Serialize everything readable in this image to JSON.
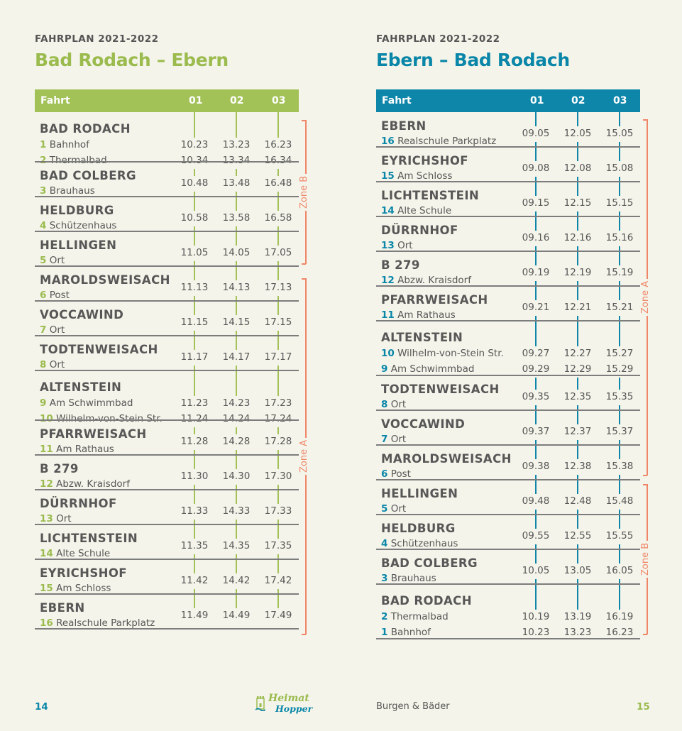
{
  "left": {
    "kicker": "FAHRPLAN 2021-2022",
    "title": "Bad Rodach – Ebern",
    "header": {
      "fahrt": "Fahrt",
      "c1": "01",
      "c2": "02",
      "c3": "03"
    },
    "zones": {
      "b": "Zone B",
      "a": "Zone A"
    },
    "stops": [
      {
        "name": "BAD RODACH",
        "subs": [
          {
            "num": "1",
            "label": "Bahnhof",
            "times": [
              "10.23",
              "13.23",
              "16.23"
            ]
          },
          {
            "num": "2",
            "label": "Thermalbad",
            "times": [
              "10.34",
              "13.34",
              "16.34"
            ]
          }
        ]
      },
      {
        "name": "BAD COLBERG",
        "num": "3",
        "label": "Brauhaus",
        "times": [
          "10.48",
          "13.48",
          "16.48"
        ]
      },
      {
        "name": "HELDBURG",
        "num": "4",
        "label": "Schützenhaus",
        "times": [
          "10.58",
          "13.58",
          "16.58"
        ]
      },
      {
        "name": "HELLINGEN",
        "num": "5",
        "label": "Ort",
        "times": [
          "11.05",
          "14.05",
          "17.05"
        ]
      },
      {
        "name": "MAROLDSWEISACH",
        "num": "6",
        "label": "Post",
        "times": [
          "11.13",
          "14.13",
          "17.13"
        ]
      },
      {
        "name": "VOCCAWIND",
        "num": "7",
        "label": "Ort",
        "times": [
          "11.15",
          "14.15",
          "17.15"
        ]
      },
      {
        "name": "TODTENWEISACH",
        "num": "8",
        "label": "Ort",
        "times": [
          "11.17",
          "14.17",
          "17.17"
        ]
      },
      {
        "name": "ALTENSTEIN",
        "subs": [
          {
            "num": "9",
            "label": "Am Schwimmbad",
            "times": [
              "11.23",
              "14.23",
              "17.23"
            ]
          },
          {
            "num": "10",
            "label": "Wilhelm-von-Stein Str.",
            "times": [
              "11.24",
              "14.24",
              "17.24"
            ]
          }
        ]
      },
      {
        "name": "PFARRWEISACH",
        "num": "11",
        "label": "Am Rathaus",
        "times": [
          "11.28",
          "14.28",
          "17.28"
        ]
      },
      {
        "name": "B 279",
        "num": "12",
        "label": "Abzw. Kraisdorf",
        "times": [
          "11.30",
          "14.30",
          "17.30"
        ]
      },
      {
        "name": "DÜRRNHOF",
        "num": "13",
        "label": "Ort",
        "times": [
          "11.33",
          "14.33",
          "17.33"
        ]
      },
      {
        "name": "LICHTENSTEIN",
        "num": "14",
        "label": "Alte Schule",
        "times": [
          "11.35",
          "14.35",
          "17.35"
        ]
      },
      {
        "name": "EYRICHSHOF",
        "num": "15",
        "label": "Am Schloss",
        "times": [
          "11.42",
          "14.42",
          "17.42"
        ]
      },
      {
        "name": "EBERN",
        "num": "16",
        "label": "Realschule Parkplatz",
        "times": [
          "11.49",
          "14.49",
          "17.49"
        ]
      }
    ]
  },
  "right": {
    "kicker": "FAHRPLAN 2021-2022",
    "title": "Ebern – Bad Rodach",
    "header": {
      "fahrt": "Fahrt",
      "c1": "01",
      "c2": "02",
      "c3": "03"
    },
    "zones": {
      "a": "Zone A",
      "b": "Zone B"
    },
    "stops": [
      {
        "name": "EBERN",
        "num": "16",
        "label": "Realschule Parkplatz",
        "times": [
          "09.05",
          "12.05",
          "15.05"
        ]
      },
      {
        "name": "EYRICHSHOF",
        "num": "15",
        "label": "Am Schloss",
        "times": [
          "09.08",
          "12.08",
          "15.08"
        ]
      },
      {
        "name": "LICHTENSTEIN",
        "num": "14",
        "label": "Alte Schule",
        "times": [
          "09.15",
          "12.15",
          "15.15"
        ]
      },
      {
        "name": "DÜRRNHOF",
        "num": "13",
        "label": "Ort",
        "times": [
          "09.16",
          "12.16",
          "15.16"
        ]
      },
      {
        "name": "B 279",
        "num": "12",
        "label": "Abzw. Kraisdorf",
        "times": [
          "09.19",
          "12.19",
          "15.19"
        ]
      },
      {
        "name": "PFARRWEISACH",
        "num": "11",
        "label": "Am Rathaus",
        "times": [
          "09.21",
          "12.21",
          "15.21"
        ]
      },
      {
        "name": "ALTENSTEIN",
        "subs": [
          {
            "num": "10",
            "label": "Wilhelm-von-Stein Str.",
            "times": [
              "09.27",
              "12.27",
              "15.27"
            ]
          },
          {
            "num": "9",
            "label": "Am Schwimmbad",
            "times": [
              "09.29",
              "12.29",
              "15.29"
            ]
          }
        ]
      },
      {
        "name": "TODTENWEISACH",
        "num": "8",
        "label": "Ort",
        "times": [
          "09.35",
          "12.35",
          "15.35"
        ]
      },
      {
        "name": "VOCCAWIND",
        "num": "7",
        "label": "Ort",
        "times": [
          "09.37",
          "12.37",
          "15.37"
        ]
      },
      {
        "name": "MAROLDSWEISACH",
        "num": "6",
        "label": "Post",
        "times": [
          "09.38",
          "12.38",
          "15.38"
        ]
      },
      {
        "name": "HELLINGEN",
        "num": "5",
        "label": "Ort",
        "times": [
          "09.48",
          "12.48",
          "15.48"
        ]
      },
      {
        "name": "HELDBURG",
        "num": "4",
        "label": "Schützenhaus",
        "times": [
          "09.55",
          "12.55",
          "15.55"
        ]
      },
      {
        "name": "BAD COLBERG",
        "num": "3",
        "label": "Brauhaus",
        "times": [
          "10.05",
          "13.05",
          "16.05"
        ]
      },
      {
        "name": "BAD RODACH",
        "subs": [
          {
            "num": "2",
            "label": "Thermalbad",
            "times": [
              "10.19",
              "13.19",
              "16.19"
            ]
          },
          {
            "num": "1",
            "label": "Bahnhof",
            "times": [
              "10.23",
              "13.23",
              "16.23"
            ]
          }
        ]
      }
    ]
  },
  "footer": {
    "left_page": "14",
    "right_page": "15",
    "caption": "Burgen & Bäder",
    "logo_line1": "Heimat",
    "logo_line2": "Hopper"
  },
  "colors": {
    "green": "#a2c157",
    "blue": "#0e86aa",
    "zone": "#f08668"
  }
}
